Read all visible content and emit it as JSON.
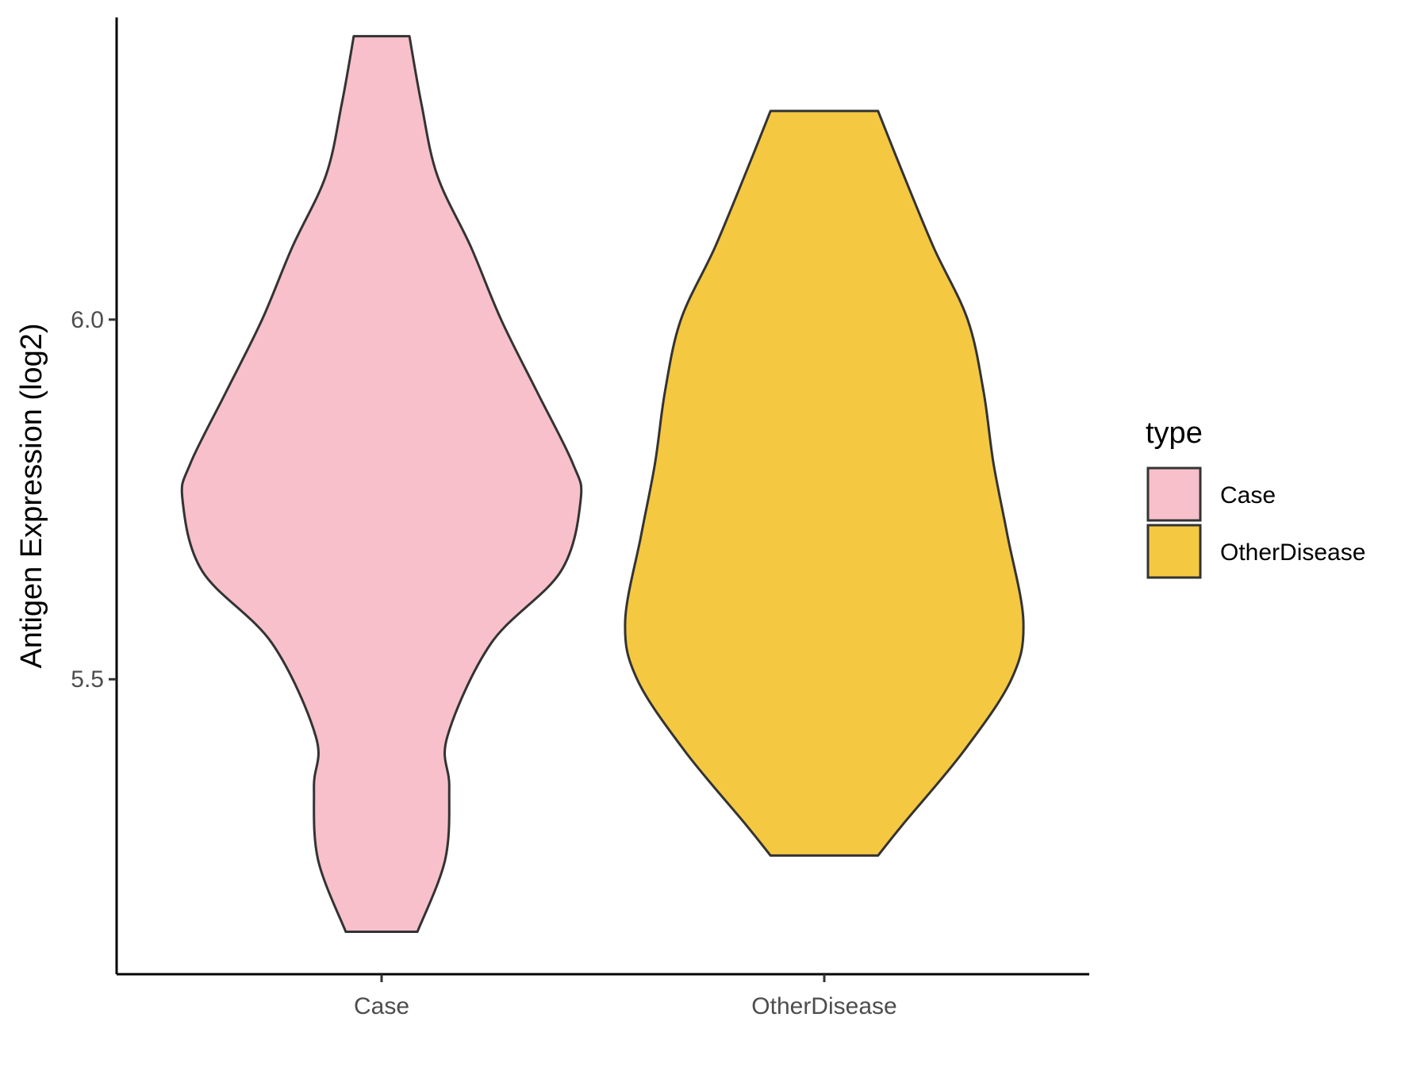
{
  "chart_data": {
    "type": "violin",
    "ylabel": "Antigen Expression (log2)",
    "xlabel": "",
    "categories": [
      "Case",
      "OtherDisease"
    ],
    "ylim": [
      5.09,
      6.42
    ],
    "yticks": [
      5.5,
      6.0
    ],
    "ytick_labels": [
      "5.5",
      "6.0"
    ],
    "grid": false,
    "legend": {
      "title": "type",
      "position": "right",
      "entries": [
        {
          "label": "Case",
          "color": "#F7C0CB"
        },
        {
          "label": "OtherDisease",
          "color": "#F5C842"
        }
      ]
    },
    "series": [
      {
        "category": "Case",
        "color": "#F7C0CB",
        "y_min": 5.149,
        "y_max": 6.394,
        "density_profile": [
          [
            5.149,
            0.18
          ],
          [
            5.25,
            0.32
          ],
          [
            5.35,
            0.34
          ],
          [
            5.42,
            0.33
          ],
          [
            5.55,
            0.55
          ],
          [
            5.65,
            0.9
          ],
          [
            5.75,
            1.0
          ],
          [
            5.8,
            0.96
          ],
          [
            5.9,
            0.78
          ],
          [
            6.0,
            0.6
          ],
          [
            6.1,
            0.45
          ],
          [
            6.2,
            0.28
          ],
          [
            6.3,
            0.2
          ],
          [
            6.394,
            0.14
          ]
        ]
      },
      {
        "category": "OtherDisease",
        "color": "#F5C842",
        "y_min": 5.255,
        "y_max": 6.29,
        "density_profile": [
          [
            5.255,
            0.27
          ],
          [
            5.3,
            0.4
          ],
          [
            5.4,
            0.7
          ],
          [
            5.5,
            0.94
          ],
          [
            5.58,
            1.0
          ],
          [
            5.7,
            0.92
          ],
          [
            5.8,
            0.85
          ],
          [
            5.9,
            0.8
          ],
          [
            6.0,
            0.72
          ],
          [
            6.1,
            0.55
          ],
          [
            6.2,
            0.4
          ],
          [
            6.29,
            0.27
          ]
        ]
      }
    ]
  }
}
